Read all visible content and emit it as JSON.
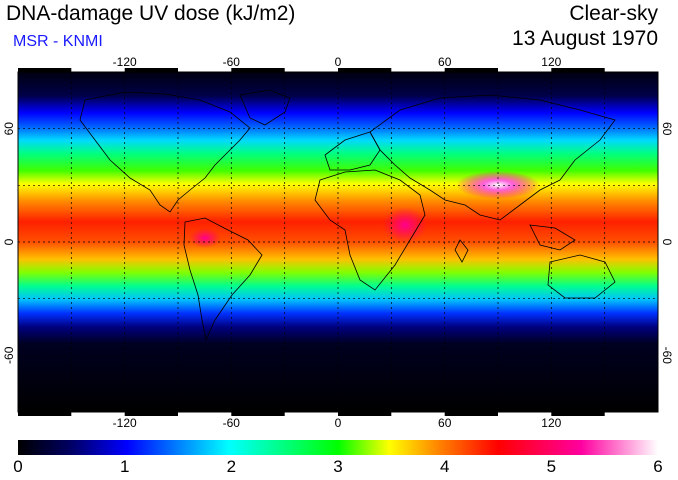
{
  "header": {
    "title": "DNA-damage UV dose (kJ/m2)",
    "credit": "MSR - KNMI",
    "condition": "Clear-sky",
    "date": "13 August 1970"
  },
  "map": {
    "lon_ticks": [
      "-120",
      "-60",
      "0",
      "60",
      "120"
    ],
    "lat_ticks": [
      "60",
      "0",
      "-60"
    ],
    "lon_range": [
      -180,
      180
    ],
    "lat_range": [
      -90,
      90
    ],
    "graticule": "dashed every 30 degrees"
  },
  "colorbar": {
    "labels": [
      "0",
      "1",
      "2",
      "3",
      "4",
      "5",
      "6"
    ],
    "range": [
      0,
      6
    ],
    "colors": [
      "#000000",
      "#000060",
      "#0000ff",
      "#00ffff",
      "#00ff00",
      "#ffff00",
      "#ff8000",
      "#ff0000",
      "#ff00a0",
      "#ffffff"
    ]
  }
}
